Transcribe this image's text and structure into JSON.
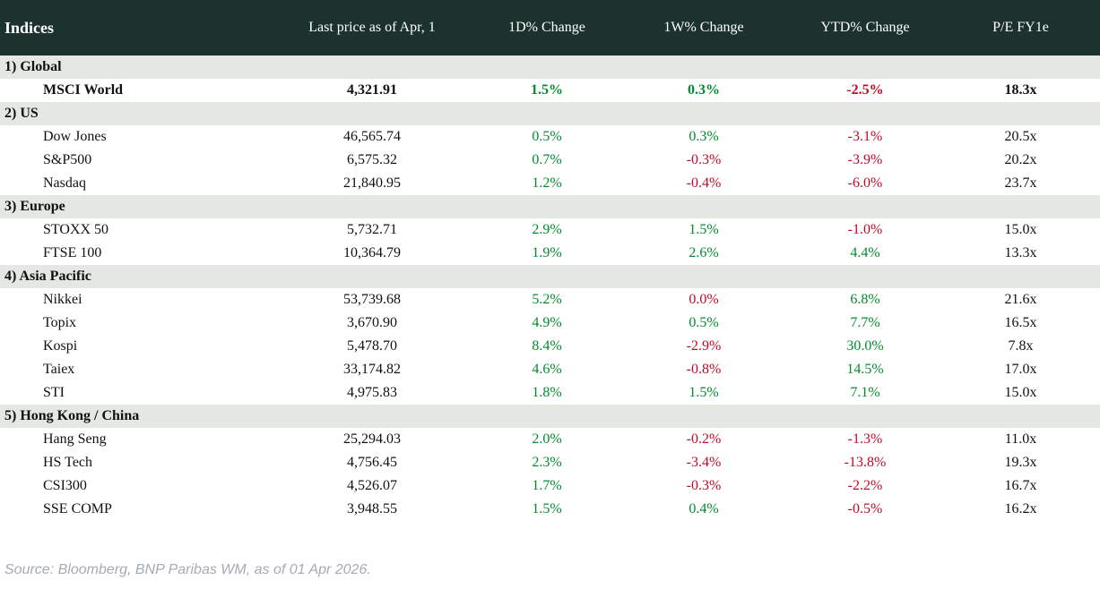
{
  "chart_data": {
    "type": "table",
    "title": "Indices",
    "columns": [
      "Last price as of Apr, 1",
      "1D% Change",
      "1W% Change",
      "YTD% Change",
      "P/E FY1e"
    ],
    "groups": [
      {
        "label": "1) Global",
        "rows": [
          {
            "name": "MSCI World",
            "bold": true,
            "price": "4,321.91",
            "d1": {
              "v": "1.5%",
              "c": "green"
            },
            "w1": {
              "v": "0.3%",
              "c": "green"
            },
            "ytd": {
              "v": "-2.5%",
              "c": "red"
            },
            "pe": "18.3x"
          }
        ]
      },
      {
        "label": "2) US",
        "rows": [
          {
            "name": "Dow Jones",
            "bold": false,
            "price": "46,565.74",
            "d1": {
              "v": "0.5%",
              "c": "green"
            },
            "w1": {
              "v": "0.3%",
              "c": "green"
            },
            "ytd": {
              "v": "-3.1%",
              "c": "red"
            },
            "pe": "20.5x"
          },
          {
            "name": "S&P500",
            "bold": false,
            "price": "6,575.32",
            "d1": {
              "v": "0.7%",
              "c": "green"
            },
            "w1": {
              "v": "-0.3%",
              "c": "red"
            },
            "ytd": {
              "v": "-3.9%",
              "c": "red"
            },
            "pe": "20.2x"
          },
          {
            "name": "Nasdaq",
            "bold": false,
            "price": "21,840.95",
            "d1": {
              "v": "1.2%",
              "c": "green"
            },
            "w1": {
              "v": "-0.4%",
              "c": "red"
            },
            "ytd": {
              "v": "-6.0%",
              "c": "red"
            },
            "pe": "23.7x"
          }
        ]
      },
      {
        "label": "3) Europe",
        "rows": [
          {
            "name": "STOXX 50",
            "bold": false,
            "price": "5,732.71",
            "d1": {
              "v": "2.9%",
              "c": "green"
            },
            "w1": {
              "v": "1.5%",
              "c": "green"
            },
            "ytd": {
              "v": "-1.0%",
              "c": "red"
            },
            "pe": "15.0x"
          },
          {
            "name": "FTSE 100",
            "bold": false,
            "price": "10,364.79",
            "d1": {
              "v": "1.9%",
              "c": "green"
            },
            "w1": {
              "v": "2.6%",
              "c": "green"
            },
            "ytd": {
              "v": "4.4%",
              "c": "green"
            },
            "pe": "13.3x"
          }
        ]
      },
      {
        "label": "4) Asia Pacific",
        "rows": [
          {
            "name": "Nikkei",
            "bold": false,
            "price": "53,739.68",
            "d1": {
              "v": "5.2%",
              "c": "green"
            },
            "w1": {
              "v": "0.0%",
              "c": "red"
            },
            "ytd": {
              "v": "6.8%",
              "c": "green"
            },
            "pe": "21.6x"
          },
          {
            "name": "Topix",
            "bold": false,
            "price": "3,670.90",
            "d1": {
              "v": "4.9%",
              "c": "green"
            },
            "w1": {
              "v": "0.5%",
              "c": "green"
            },
            "ytd": {
              "v": "7.7%",
              "c": "green"
            },
            "pe": "16.5x"
          },
          {
            "name": "Kospi",
            "bold": false,
            "price": "5,478.70",
            "d1": {
              "v": "8.4%",
              "c": "green"
            },
            "w1": {
              "v": "-2.9%",
              "c": "red"
            },
            "ytd": {
              "v": "30.0%",
              "c": "green"
            },
            "pe": "7.8x"
          },
          {
            "name": "Taiex",
            "bold": false,
            "price": "33,174.82",
            "d1": {
              "v": "4.6%",
              "c": "green"
            },
            "w1": {
              "v": "-0.8%",
              "c": "red"
            },
            "ytd": {
              "v": "14.5%",
              "c": "green"
            },
            "pe": "17.0x"
          },
          {
            "name": "STI",
            "bold": false,
            "price": "4,975.83",
            "d1": {
              "v": "1.8%",
              "c": "green"
            },
            "w1": {
              "v": "1.5%",
              "c": "green"
            },
            "ytd": {
              "v": "7.1%",
              "c": "green"
            },
            "pe": "15.0x"
          }
        ]
      },
      {
        "label": "5) Hong Kong / China",
        "rows": [
          {
            "name": "Hang Seng",
            "bold": false,
            "price": "25,294.03",
            "d1": {
              "v": "2.0%",
              "c": "green"
            },
            "w1": {
              "v": "-0.2%",
              "c": "red"
            },
            "ytd": {
              "v": "-1.3%",
              "c": "red"
            },
            "pe": "11.0x"
          },
          {
            "name": "HS Tech",
            "bold": false,
            "price": "4,756.45",
            "d1": {
              "v": "2.3%",
              "c": "green"
            },
            "w1": {
              "v": "-3.4%",
              "c": "red"
            },
            "ytd": {
              "v": "-13.8%",
              "c": "red"
            },
            "pe": "19.3x"
          },
          {
            "name": "CSI300",
            "bold": false,
            "price": "4,526.07",
            "d1": {
              "v": "1.7%",
              "c": "green"
            },
            "w1": {
              "v": "-0.3%",
              "c": "red"
            },
            "ytd": {
              "v": "-2.2%",
              "c": "red"
            },
            "pe": "16.7x"
          },
          {
            "name": "SSE COMP",
            "bold": false,
            "price": "3,948.55",
            "d1": {
              "v": "1.5%",
              "c": "green"
            },
            "w1": {
              "v": "0.4%",
              "c": "green"
            },
            "ytd": {
              "v": "-0.5%",
              "c": "red"
            },
            "pe": "16.2x"
          }
        ]
      }
    ],
    "layout": {
      "positive_color": "#008c2d",
      "negative_color": "#c00a26",
      "header_bg": "#1c322d",
      "group_row_bg": "#e4e8e3"
    }
  },
  "footer": {
    "source": "Source: Bloomberg, BNP Paribas WM, as of 01 Apr 2026."
  }
}
